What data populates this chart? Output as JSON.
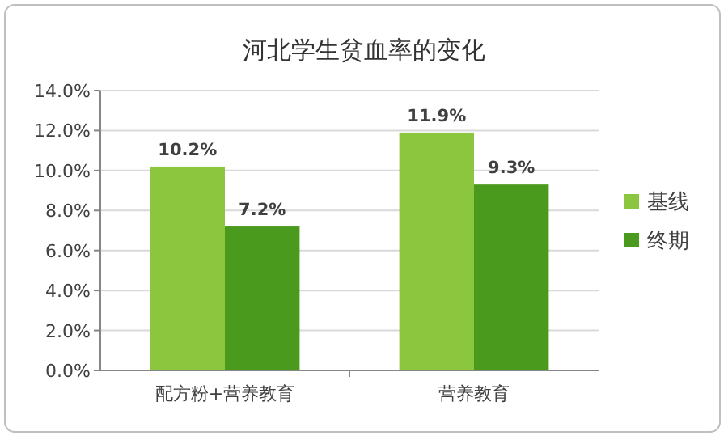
{
  "chart_data": {
    "type": "bar",
    "title": "河北学生贫血率的变化",
    "categories": [
      "配方粉+营养教育",
      "营养教育"
    ],
    "series": [
      {
        "name": "基线",
        "color": "#8cc63f",
        "values": [
          10.2,
          11.9
        ],
        "value_labels": [
          "10.2%",
          "11.9%"
        ]
      },
      {
        "name": "终期",
        "color": "#4a9a1e",
        "values": [
          7.2,
          9.3
        ],
        "value_labels": [
          "7.2%",
          "9.3%"
        ]
      }
    ],
    "ylim": [
      0,
      14
    ],
    "yticks": [
      {
        "value": 0,
        "label": "0.0%"
      },
      {
        "value": 2,
        "label": "2.0%"
      },
      {
        "value": 4,
        "label": "4.0%"
      },
      {
        "value": 6,
        "label": "6.0%"
      },
      {
        "value": 8,
        "label": "8.0%"
      },
      {
        "value": 10,
        "label": "10.0%"
      },
      {
        "value": 12,
        "label": "12.0%"
      },
      {
        "value": 14,
        "label": "14.0%"
      }
    ],
    "grid": "y",
    "legend": "right"
  }
}
